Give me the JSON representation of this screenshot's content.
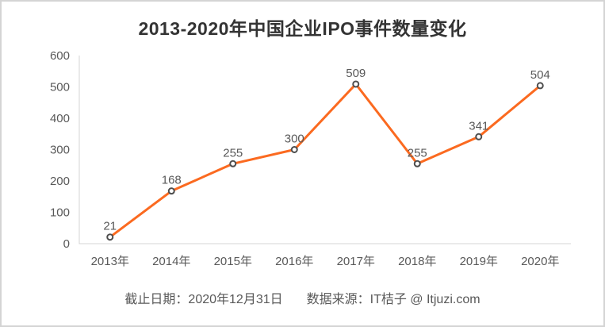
{
  "page": {
    "title": "2013-2020年中国企业IPO事件数量变化",
    "footer": {
      "cutoff": "截止日期：2020年12月31日",
      "source": "数据来源：IT桔子 @ Itjuzi.com"
    }
  },
  "colors": {
    "line": "#fb6a20",
    "marker_fill": "#ffffff",
    "marker_stroke": "#4d4d4d",
    "axis": "#d4d4d4",
    "title_text": "#333333",
    "label_text": "#595959"
  },
  "chart_data": {
    "type": "line",
    "title": "2013-2020年中国企业IPO事件数量变化",
    "categories": [
      "2013年",
      "2014年",
      "2015年",
      "2016年",
      "2017年",
      "2018年",
      "2019年",
      "2020年"
    ],
    "values": [
      21,
      168,
      255,
      300,
      509,
      255,
      341,
      504
    ],
    "xlabel": "",
    "ylabel": "",
    "ylim": [
      0,
      600
    ],
    "yticks": [
      0,
      100,
      200,
      300,
      400,
      500,
      600
    ],
    "grid": false,
    "legend": "none",
    "point_labels": true
  }
}
